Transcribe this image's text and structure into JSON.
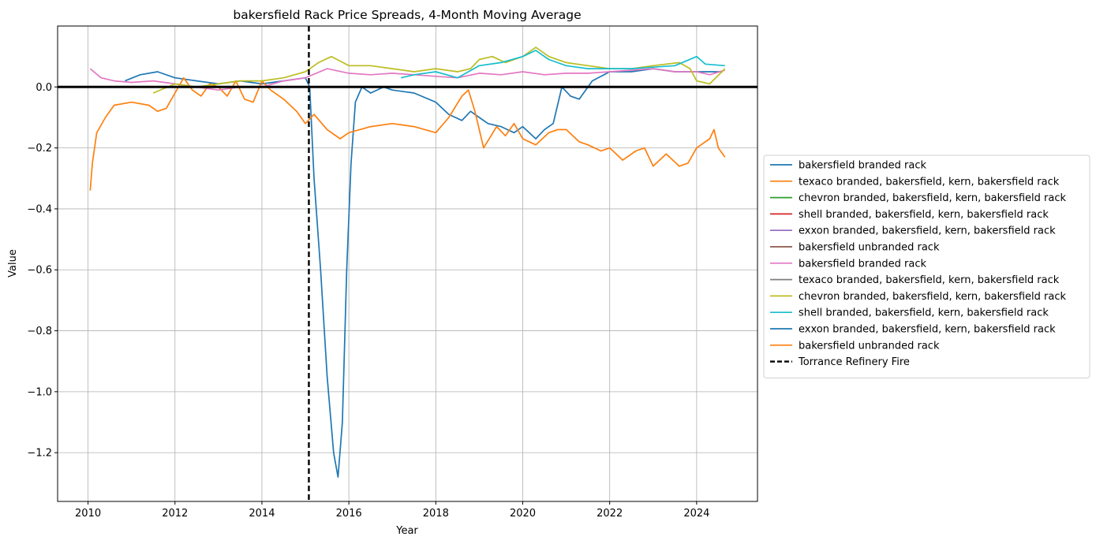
{
  "chart_data": {
    "type": "line",
    "title": "bakersfield Rack Price Spreads, 4-Month Moving Average",
    "xlabel": "Year",
    "ylabel": "Value",
    "xlim": [
      2009.3,
      2025.4
    ],
    "ylim": [
      -1.36,
      0.2
    ],
    "xticks": [
      2010,
      2012,
      2014,
      2016,
      2018,
      2020,
      2022,
      2024
    ],
    "xtick_labels": [
      "2010",
      "2012",
      "2014",
      "2016",
      "2018",
      "2020",
      "2022",
      "2024"
    ],
    "yticks": [
      -1.2,
      -1.0,
      -0.8,
      -0.6,
      -0.4,
      -0.2,
      0.0
    ],
    "ytick_labels": [
      "−1.2",
      "−1.0",
      "−0.8",
      "−0.6",
      "−0.4",
      "−0.2",
      "0.0"
    ],
    "grid": true,
    "legend_position": "outside-right",
    "zero_line": {
      "y": 0.0,
      "color": "#000000"
    },
    "vline": {
      "x": 2015.08,
      "label": "Torrance Refinery Fire",
      "color": "#000000",
      "style": "dashed"
    },
    "series": [
      {
        "name": "bakersfield branded rack",
        "color": "#1f77b4",
        "x": [
          2010.85,
          2011.2,
          2011.6,
          2012.0,
          2012.5,
          2013.0,
          2013.5,
          2014.0,
          2014.5,
          2015.0,
          2015.1,
          2015.2,
          2015.35,
          2015.5,
          2015.65,
          2015.75,
          2015.85,
          2015.95,
          2016.05,
          2016.15,
          2016.3,
          2016.5,
          2016.8,
          2017.0,
          2017.5,
          2018.0,
          2018.3,
          2018.6,
          2018.8,
          2019.0,
          2019.2,
          2019.5,
          2019.8,
          2020.0,
          2020.3,
          2020.5,
          2020.7,
          2020.9,
          2021.1,
          2021.3,
          2021.6,
          2022.0,
          2022.5,
          2023.0,
          2023.5,
          2024.0,
          2024.3,
          2024.6
        ],
        "values": [
          0.02,
          0.04,
          0.05,
          0.03,
          0.02,
          0.01,
          0.02,
          0.01,
          0.02,
          0.03,
          0.0,
          -0.3,
          -0.6,
          -0.95,
          -1.2,
          -1.28,
          -1.1,
          -0.6,
          -0.25,
          -0.05,
          0.0,
          -0.02,
          0.0,
          -0.01,
          -0.02,
          -0.05,
          -0.09,
          -0.11,
          -0.08,
          -0.1,
          -0.12,
          -0.13,
          -0.15,
          -0.13,
          -0.17,
          -0.14,
          -0.12,
          0.0,
          -0.03,
          -0.04,
          0.02,
          0.05,
          0.05,
          0.06,
          0.05,
          0.05,
          0.05,
          0.05
        ]
      },
      {
        "name": "texaco branded, bakersfield, kern, bakersfield rack",
        "color": "#ff7f0e",
        "x": [
          2010.05,
          2010.1,
          2010.2,
          2010.4,
          2010.6,
          2011.0,
          2011.4,
          2011.6,
          2011.8,
          2012.0,
          2012.2,
          2012.4,
          2012.6,
          2012.8,
          2013.0,
          2013.2,
          2013.4,
          2013.6,
          2013.8,
          2014.0,
          2014.2,
          2014.5,
          2014.8,
          2015.0,
          2015.2,
          2015.5,
          2015.8,
          2016.0,
          2016.5,
          2017.0,
          2017.5,
          2018.0,
          2018.3,
          2018.6,
          2018.75,
          2018.9,
          2019.1,
          2019.4,
          2019.6,
          2019.8,
          2020.0,
          2020.3,
          2020.6,
          2020.8,
          2021.0,
          2021.3,
          2021.5,
          2021.8,
          2022.0,
          2022.3,
          2022.6,
          2022.8,
          2023.0,
          2023.3,
          2023.6,
          2023.8,
          2024.0,
          2024.3,
          2024.4,
          2024.5,
          2024.65
        ],
        "values": [
          -0.34,
          -0.25,
          -0.15,
          -0.1,
          -0.06,
          -0.05,
          -0.06,
          -0.08,
          -0.07,
          -0.02,
          0.03,
          -0.01,
          -0.03,
          0.01,
          0.0,
          -0.03,
          0.02,
          -0.04,
          -0.05,
          0.02,
          -0.01,
          -0.04,
          -0.08,
          -0.12,
          -0.09,
          -0.14,
          -0.17,
          -0.15,
          -0.13,
          -0.12,
          -0.13,
          -0.15,
          -0.1,
          -0.03,
          -0.01,
          -0.08,
          -0.2,
          -0.13,
          -0.16,
          -0.12,
          -0.17,
          -0.19,
          -0.15,
          -0.14,
          -0.14,
          -0.18,
          -0.19,
          -0.21,
          -0.2,
          -0.24,
          -0.21,
          -0.2,
          -0.26,
          -0.22,
          -0.26,
          -0.25,
          -0.2,
          -0.17,
          -0.14,
          -0.2,
          -0.23
        ]
      },
      {
        "name": "chevron branded, bakersfield, kern, bakersfield rack",
        "color": "#2ca02c",
        "x": [],
        "values": []
      },
      {
        "name": "shell branded, bakersfield, kern, bakersfield rack",
        "color": "#d62728",
        "x": [],
        "values": []
      },
      {
        "name": "exxon branded, bakersfield, kern, bakersfield rack",
        "color": "#9467bd",
        "x": [],
        "values": []
      },
      {
        "name": "bakersfield unbranded rack",
        "color": "#8c564b",
        "x": [],
        "values": []
      },
      {
        "name": "bakersfield branded rack",
        "color": "#e377c2",
        "x": [
          2010.05,
          2010.3,
          2010.6,
          2011.0,
          2011.5,
          2012.0,
          2012.5,
          2013.0,
          2013.5,
          2014.0,
          2014.5,
          2015.0,
          2015.5,
          2016.0,
          2016.5,
          2017.0,
          2017.5,
          2018.0,
          2018.5,
          2019.0,
          2019.5,
          2020.0,
          2020.5,
          2021.0,
          2021.5,
          2022.0,
          2022.5,
          2023.0,
          2023.5,
          2024.0,
          2024.3,
          2024.65
        ],
        "values": [
          0.06,
          0.03,
          0.02,
          0.015,
          0.02,
          0.01,
          0.0,
          -0.01,
          0.0,
          0.0,
          0.02,
          0.03,
          0.06,
          0.045,
          0.04,
          0.045,
          0.04,
          0.035,
          0.03,
          0.045,
          0.04,
          0.05,
          0.04,
          0.045,
          0.045,
          0.05,
          0.055,
          0.06,
          0.05,
          0.05,
          0.04,
          0.055
        ]
      },
      {
        "name": "texaco branded, bakersfield, kern, bakersfield rack",
        "color": "#7f7f7f",
        "x": [],
        "values": []
      },
      {
        "name": "chevron branded, bakersfield, kern, bakersfield rack",
        "color": "#bcbd22",
        "x": [
          2011.5,
          2012.0,
          2012.5,
          2013.0,
          2013.5,
          2014.0,
          2014.5,
          2015.0,
          2015.3,
          2015.6,
          2016.0,
          2016.5,
          2017.0,
          2017.5,
          2018.0,
          2018.5,
          2018.8,
          2019.0,
          2019.3,
          2019.6,
          2020.0,
          2020.3,
          2020.6,
          2021.0,
          2021.5,
          2022.0,
          2022.5,
          2023.0,
          2023.6,
          2023.85,
          2024.0,
          2024.3,
          2024.65
        ],
        "values": [
          -0.02,
          0.01,
          0.0,
          0.01,
          0.02,
          0.02,
          0.03,
          0.05,
          0.08,
          0.1,
          0.07,
          0.07,
          0.06,
          0.05,
          0.06,
          0.05,
          0.06,
          0.09,
          0.1,
          0.08,
          0.1,
          0.13,
          0.1,
          0.08,
          0.07,
          0.06,
          0.06,
          0.07,
          0.08,
          0.06,
          0.02,
          0.01,
          0.06
        ]
      },
      {
        "name": "shell branded, bakersfield, kern, bakersfield rack",
        "color": "#17becf",
        "x": [
          2017.2,
          2017.5,
          2018.0,
          2018.5,
          2019.0,
          2019.5,
          2020.0,
          2020.3,
          2020.6,
          2021.0,
          2021.5,
          2022.0,
          2022.5,
          2023.0,
          2023.5,
          2024.0,
          2024.2,
          2024.65
        ],
        "values": [
          0.03,
          0.04,
          0.05,
          0.03,
          0.07,
          0.08,
          0.1,
          0.12,
          0.09,
          0.07,
          0.06,
          0.06,
          0.06,
          0.065,
          0.07,
          0.1,
          0.075,
          0.07
        ]
      },
      {
        "name": "exxon branded, bakersfield, kern, bakersfield rack",
        "color": "#1f77b4",
        "x": [],
        "values": []
      },
      {
        "name": "bakersfield unbranded rack",
        "color": "#ff7f0e",
        "x": [],
        "values": []
      }
    ]
  }
}
